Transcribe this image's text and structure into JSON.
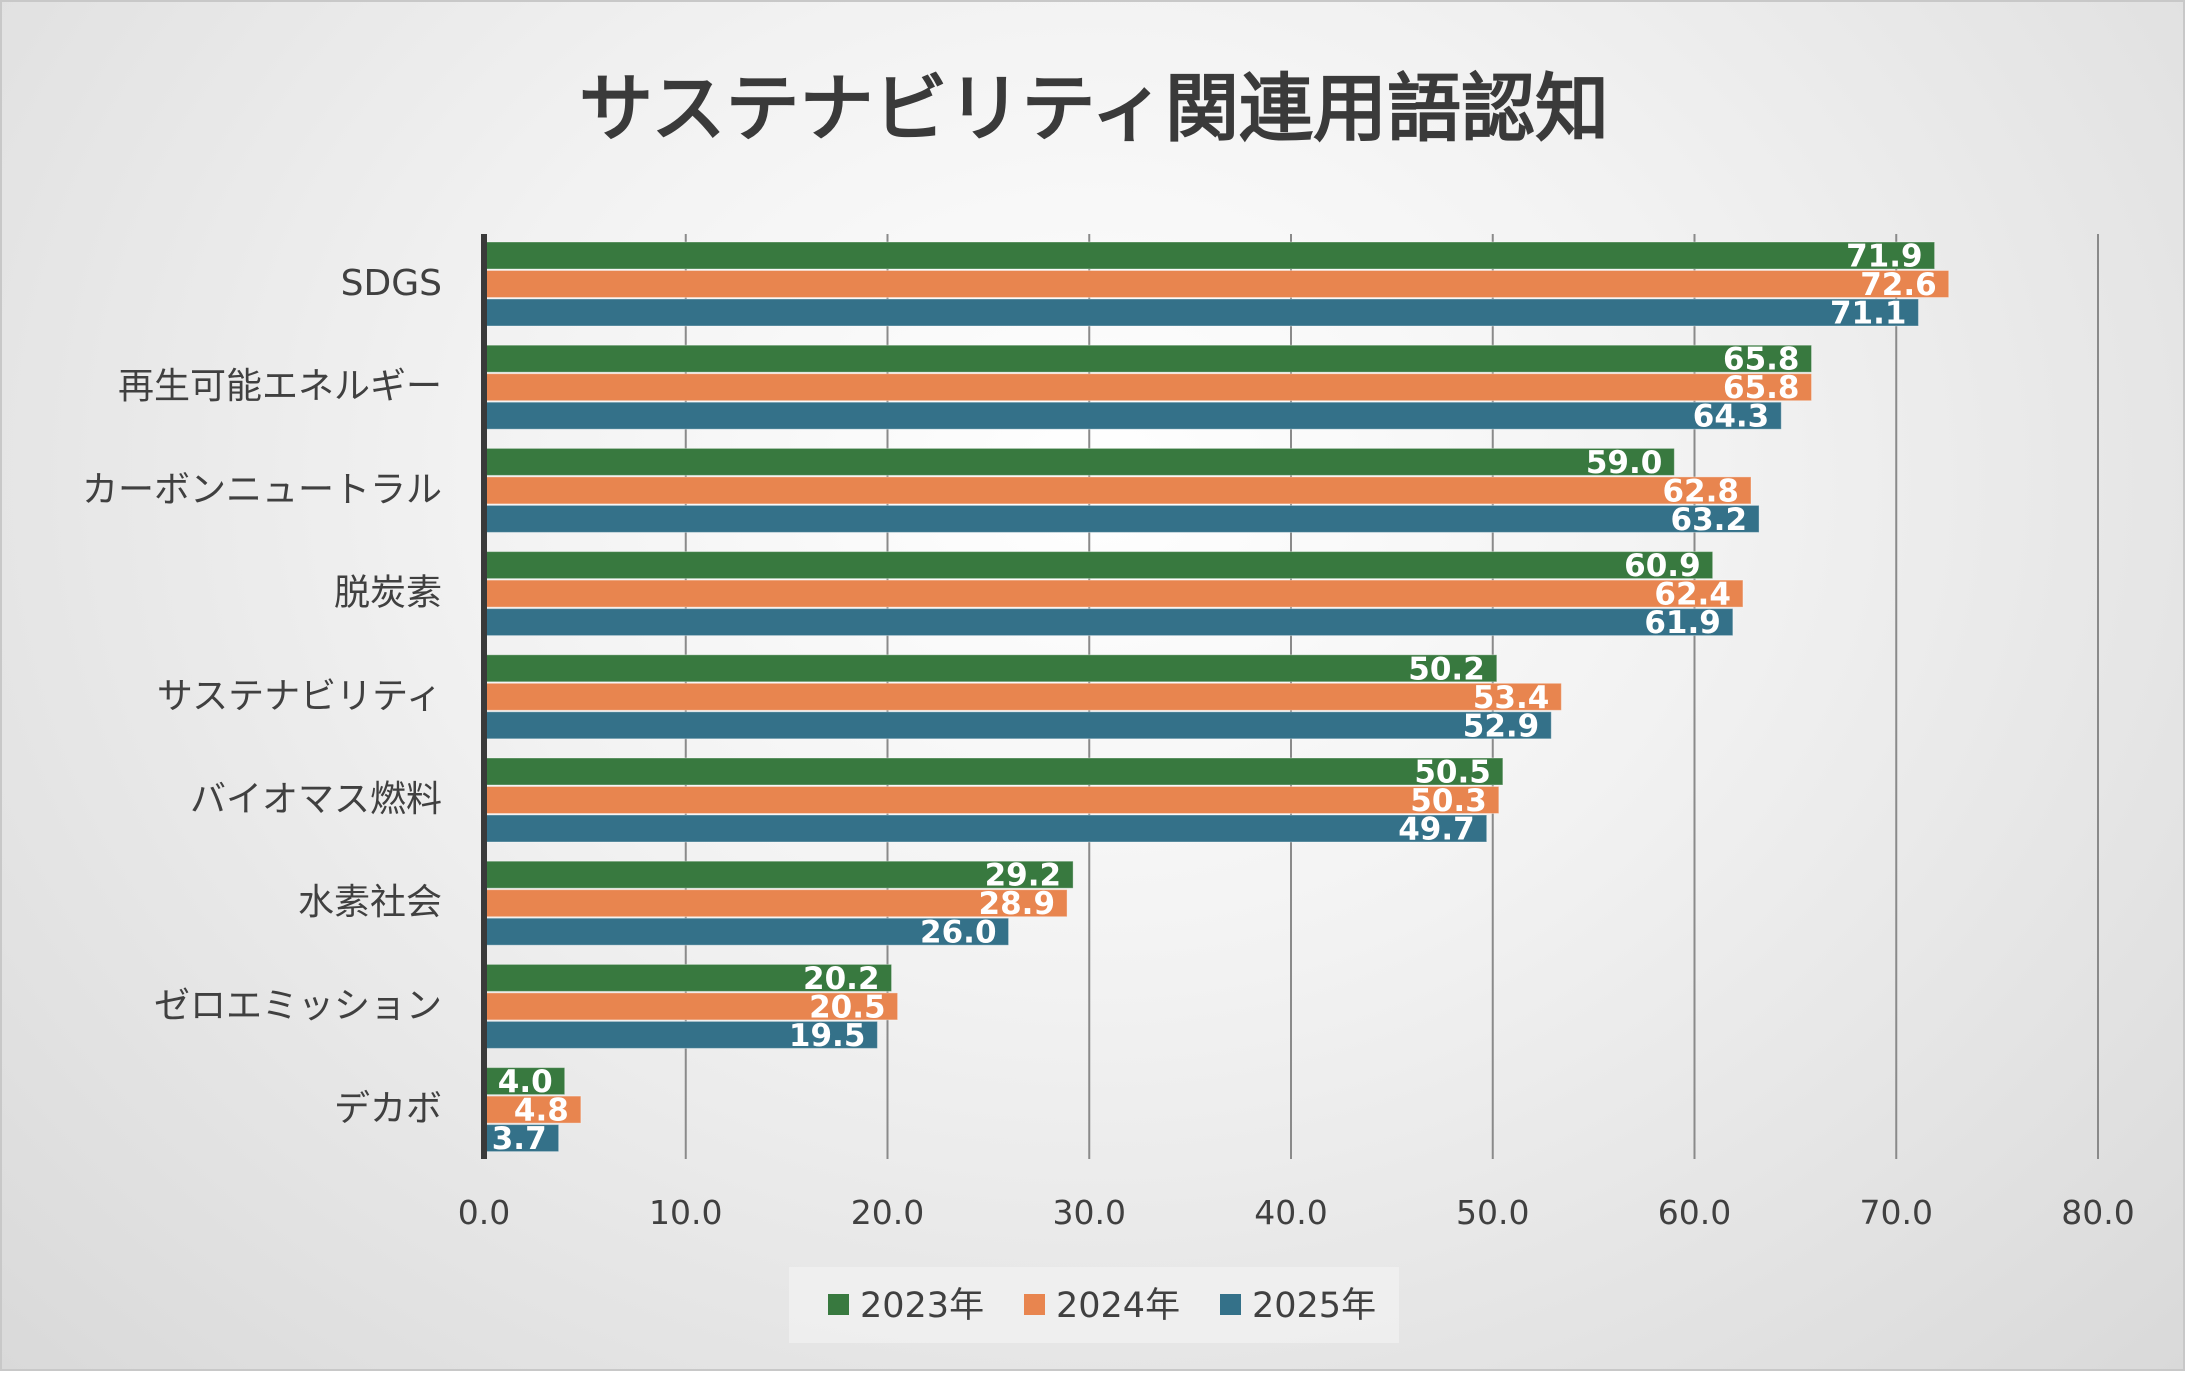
{
  "chart_data": {
    "type": "bar",
    "orientation": "horizontal",
    "title": "サステナビリティ関連用語認知",
    "categories": [
      "SDGS",
      "再生可能エネルギー",
      "カーボンニュートラル",
      "脱炭素",
      "サステナビリティ",
      "バイオマス燃料",
      "水素社会",
      "ゼロエミッション",
      "デカボ"
    ],
    "series": [
      {
        "name": "2023年",
        "color": "#38793f",
        "values": [
          71.9,
          65.8,
          59.0,
          60.9,
          50.2,
          50.5,
          29.2,
          20.2,
          4.0
        ],
        "labels": [
          "71.9",
          "65.8",
          "59.0",
          "60.9",
          "50.2",
          "50.5",
          "29.2",
          "20.2",
          "4.0"
        ]
      },
      {
        "name": "2024年",
        "color": "#e8854f",
        "values": [
          72.6,
          65.8,
          62.8,
          62.4,
          53.4,
          50.3,
          28.9,
          20.5,
          4.8
        ],
        "labels": [
          "72.6",
          "65.8",
          "62.8",
          "62.4",
          "53.4",
          "50.3",
          "28.9",
          "20.5",
          "4.8"
        ]
      },
      {
        "name": "2025年",
        "color": "#347189",
        "values": [
          71.1,
          64.3,
          63.2,
          61.9,
          52.9,
          49.7,
          26.0,
          19.5,
          3.7
        ],
        "labels": [
          "71.1",
          "64.3",
          "63.2",
          "61.9",
          "52.9",
          "49.7",
          "26.0",
          "19.5",
          "3.7"
        ]
      }
    ],
    "xlim": [
      0,
      80
    ],
    "xticks": [
      0,
      10,
      20,
      30,
      40,
      50,
      60,
      70,
      80
    ],
    "xtick_labels": [
      "0.0",
      "10.0",
      "20.0",
      "30.0",
      "40.0",
      "50.0",
      "60.0",
      "70.0",
      "80.0"
    ],
    "grid": "vertical",
    "legend": "bottom"
  }
}
